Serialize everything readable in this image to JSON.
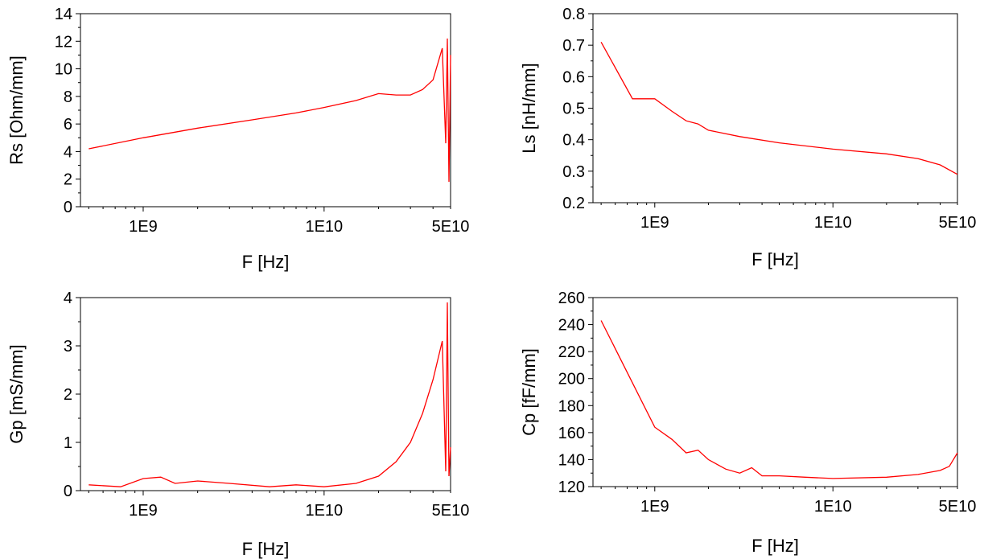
{
  "series_color": "#ff0000",
  "chart_data": [
    {
      "type": "line",
      "xlabel": "F [Hz]",
      "ylabel": "Rs [Ohm/mm]",
      "xscale": "log",
      "xlim": [
        450000000,
        50000000000
      ],
      "ylim": [
        0,
        14
      ],
      "xticks": [
        {
          "value": 1000000000,
          "label": "1E9"
        },
        {
          "value": 10000000000,
          "label": "1E10"
        },
        {
          "value": 50000000000,
          "label": "5E10"
        }
      ],
      "yticks": [
        {
          "value": 0,
          "label": "0"
        },
        {
          "value": 2,
          "label": "2"
        },
        {
          "value": 4,
          "label": "4"
        },
        {
          "value": 6,
          "label": "6"
        },
        {
          "value": 8,
          "label": "8"
        },
        {
          "value": 10,
          "label": "10"
        },
        {
          "value": 12,
          "label": "12"
        },
        {
          "value": 14,
          "label": "14"
        }
      ],
      "grid": false,
      "series": [
        {
          "x": [
            500000000,
            1000000000,
            2000000000,
            4000000000,
            7000000000,
            10000000000,
            15000000000,
            20000000000,
            25000000000,
            30000000000,
            35000000000,
            40000000000,
            45000000000,
            47000000000,
            48000000000,
            49000000000,
            50000000000
          ],
          "y": [
            4.2,
            5.0,
            5.7,
            6.3,
            6.8,
            7.2,
            7.7,
            8.2,
            8.1,
            8.1,
            8.5,
            9.2,
            11.5,
            4.6,
            12.2,
            1.8,
            11.0
          ]
        }
      ]
    },
    {
      "type": "line",
      "xlabel": "F [Hz]",
      "ylabel": "Ls [nH/mm]",
      "xscale": "log",
      "xlim": [
        450000000,
        50000000000
      ],
      "ylim": [
        0.2,
        0.8
      ],
      "xticks": [
        {
          "value": 1000000000,
          "label": "1E9"
        },
        {
          "value": 10000000000,
          "label": "1E10"
        },
        {
          "value": 50000000000,
          "label": "5E10"
        }
      ],
      "yticks": [
        {
          "value": 0.2,
          "label": "0.2"
        },
        {
          "value": 0.3,
          "label": "0.3"
        },
        {
          "value": 0.4,
          "label": "0.4"
        },
        {
          "value": 0.5,
          "label": "0.5"
        },
        {
          "value": 0.6,
          "label": "0.6"
        },
        {
          "value": 0.7,
          "label": "0.7"
        },
        {
          "value": 0.8,
          "label": "0.8"
        }
      ],
      "grid": false,
      "series": [
        {
          "x": [
            500000000,
            750000000,
            1000000000,
            1250000000,
            1500000000,
            1750000000,
            2000000000,
            3000000000,
            5000000000,
            10000000000,
            20000000000,
            30000000000,
            40000000000,
            50000000000
          ],
          "y": [
            0.71,
            0.53,
            0.53,
            0.49,
            0.46,
            0.45,
            0.43,
            0.41,
            0.39,
            0.37,
            0.355,
            0.34,
            0.32,
            0.29
          ]
        }
      ]
    },
    {
      "type": "line",
      "xlabel": "F [Hz]",
      "ylabel": "Gp [mS/mm]",
      "xscale": "log",
      "xlim": [
        450000000,
        50000000000
      ],
      "ylim": [
        0,
        4
      ],
      "xticks": [
        {
          "value": 1000000000,
          "label": "1E9"
        },
        {
          "value": 10000000000,
          "label": "1E10"
        },
        {
          "value": 50000000000,
          "label": "5E10"
        }
      ],
      "yticks": [
        {
          "value": 0,
          "label": "0"
        },
        {
          "value": 1,
          "label": "1"
        },
        {
          "value": 2,
          "label": "2"
        },
        {
          "value": 3,
          "label": "3"
        },
        {
          "value": 4,
          "label": "4"
        }
      ],
      "grid": false,
      "series": [
        {
          "x": [
            500000000,
            750000000,
            1000000000,
            1250000000,
            1500000000,
            2000000000,
            3000000000,
            5000000000,
            7000000000,
            10000000000,
            15000000000,
            20000000000,
            25000000000,
            30000000000,
            35000000000,
            40000000000,
            45000000000,
            47000000000,
            48000000000,
            49000000000,
            50000000000
          ],
          "y": [
            0.12,
            0.08,
            0.25,
            0.28,
            0.15,
            0.2,
            0.15,
            0.08,
            0.12,
            0.08,
            0.15,
            0.3,
            0.6,
            1.0,
            1.6,
            2.3,
            3.1,
            0.4,
            3.9,
            0.3,
            0.9
          ]
        }
      ]
    },
    {
      "type": "line",
      "xlabel": "F [Hz]",
      "ylabel": "Cp [fF/mm]",
      "xscale": "log",
      "xlim": [
        450000000,
        50000000000
      ],
      "ylim": [
        120,
        260
      ],
      "xticks": [
        {
          "value": 1000000000,
          "label": "1E9"
        },
        {
          "value": 10000000000,
          "label": "1E10"
        },
        {
          "value": 50000000000,
          "label": "5E10"
        }
      ],
      "yticks": [
        {
          "value": 120,
          "label": "120"
        },
        {
          "value": 140,
          "label": "140"
        },
        {
          "value": 160,
          "label": "160"
        },
        {
          "value": 180,
          "label": "180"
        },
        {
          "value": 200,
          "label": "200"
        },
        {
          "value": 220,
          "label": "220"
        },
        {
          "value": 240,
          "label": "240"
        },
        {
          "value": 260,
          "label": "260"
        }
      ],
      "grid": false,
      "series": [
        {
          "x": [
            500000000,
            1000000000,
            1250000000,
            1500000000,
            1750000000,
            2000000000,
            2500000000,
            3000000000,
            3500000000,
            4000000000,
            5000000000,
            7000000000,
            10000000000,
            20000000000,
            30000000000,
            40000000000,
            45000000000,
            50000000000
          ],
          "y": [
            243,
            164,
            155,
            145,
            147,
            140,
            133,
            130,
            134,
            128,
            128,
            127,
            126,
            127,
            129,
            132,
            135,
            145
          ]
        }
      ]
    }
  ]
}
